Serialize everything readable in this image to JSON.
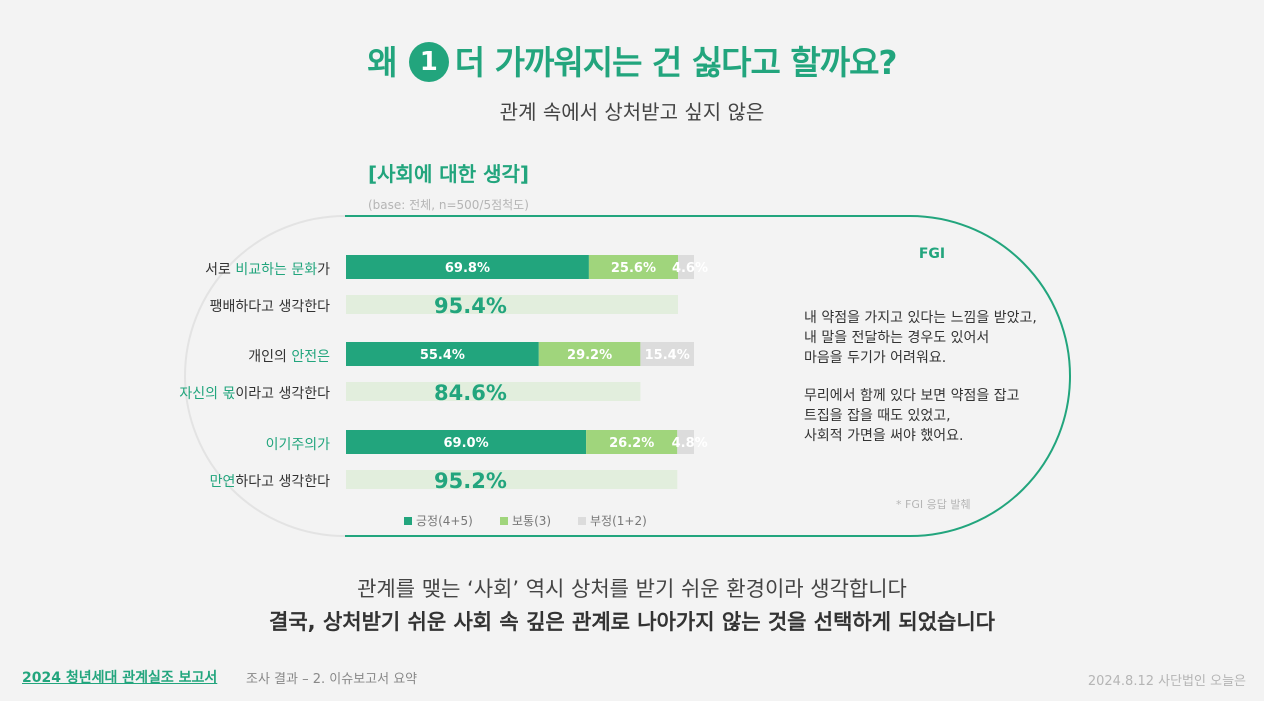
{
  "header": {
    "title_pre": "왜",
    "title_num": "1",
    "title_post": "더 가까워지는 건 싫다고 할까요?",
    "subtitle": "관계 속에서 상처받고 싶지 않은"
  },
  "section": {
    "title": "[사회에 대한 생각]",
    "base": "(base: 전체, n=500/5점척도)"
  },
  "rows": [
    {
      "line1": [
        {
          "t": "서로 ",
          "h": false
        },
        {
          "t": "비교하는 문화",
          "h": true
        },
        {
          "t": "가",
          "h": false
        }
      ],
      "line2": [
        {
          "t": "팽배하다고 생각한다",
          "h": false
        }
      ]
    },
    {
      "line1": [
        {
          "t": "개인의 ",
          "h": false
        },
        {
          "t": "안전은",
          "h": true
        }
      ],
      "line2": [
        {
          "t": "자신의 몫",
          "h": true
        },
        {
          "t": "이라고 생각한다",
          "h": false
        }
      ]
    },
    {
      "line1": [
        {
          "t": "이기주의가",
          "h": true
        }
      ],
      "line2": [
        {
          "t": "만연",
          "h": true
        },
        {
          "t": "하다고 생각한다",
          "h": false
        }
      ]
    }
  ],
  "chart_data": {
    "type": "bar",
    "orientation": "horizontal-stacked",
    "categories": [
      "서로 비교하는 문화가 팽배하다고 생각한다",
      "개인의 안전은 자신의 몫이라고 생각한다",
      "이기주의가 만연하다고 생각한다"
    ],
    "series": [
      {
        "name": "긍정(4+5)",
        "values": [
          69.8,
          55.4,
          69.0
        ],
        "labels": [
          "69.8%",
          "55.4%",
          "69.0%"
        ],
        "color": "#22a57d"
      },
      {
        "name": "보통(3)",
        "values": [
          25.6,
          29.2,
          26.2
        ],
        "labels": [
          "25.6%",
          "29.2%",
          "26.2%"
        ],
        "color": "#a0d57c"
      },
      {
        "name": "부정(1+2)",
        "values": [
          4.6,
          15.4,
          4.8
        ],
        "labels": [
          "4.6%",
          "15.4%",
          "4.8%"
        ],
        "color": "#dcdcdc"
      }
    ],
    "totals": {
      "values": [
        95.4,
        84.6,
        95.2
      ],
      "labels": [
        "95.4%",
        "84.6%",
        "95.2%"
      ],
      "color": "#e2eedd",
      "text_color": "#22a57d"
    },
    "xlim": [
      0,
      100
    ]
  },
  "legend": [
    "긍정(4+5)",
    "보통(3)",
    "부정(1+2)"
  ],
  "fgi": {
    "title": "FGI",
    "quote1": "내 약점을 가지고 있다는 느낌을 받았고,\n내 말을 전달하는 경우도 있어서\n마음을 두기가 어려워요.",
    "quote2": "무리에서 함께 있다 보면 약점을 잡고\n트집을 잡을 때도 있었고,\n사회적 가면을 써야 했어요.",
    "note": "* FGI 응답 발췌"
  },
  "conclusion": {
    "line1": "관계를 맺는 ‘사회’ 역시 상처를 받기 쉬운 환경이라 생각합니다",
    "line2": "결국, 상처받기 쉬운 사회 속 깊은 관계로 나아가지 않는 것을 선택하게 되었습니다"
  },
  "footer": {
    "left": "2024 청년세대 관계실조 보고서",
    "mid": "조사 결과 – 2. 이슈보고서 요약",
    "right": "2024.8.12 사단법인 오늘은"
  },
  "colors": {
    "accent": "#22a57d",
    "neutral": "#a0d57c",
    "negative": "#dcdcdc",
    "total_bg": "#e2eedd",
    "background": "#f3f3f3"
  }
}
